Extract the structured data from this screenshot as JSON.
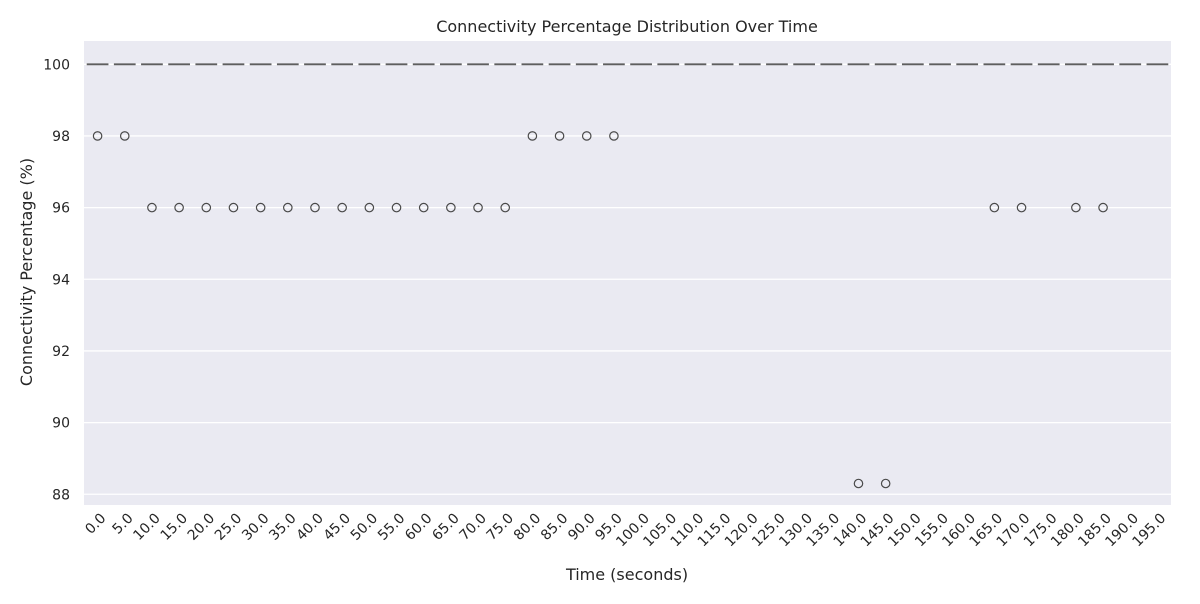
{
  "colors": {
    "plot_bg": "#EAEAF2",
    "grid": "#FFFFFF",
    "box_line": "#5E5E5E",
    "outlier_edge": "#4A4A4A",
    "text": "#262626"
  },
  "chart_data": {
    "type": "box",
    "title": "Connectivity Percentage Distribution Over Time",
    "xlabel": "Time (seconds)",
    "ylabel": "Connectivity Percentage (%)",
    "ylim": [
      87.7,
      100.65
    ],
    "yticks": [
      88,
      90,
      92,
      94,
      96,
      98,
      100
    ],
    "grid": true,
    "categories": [
      "0.0",
      "5.0",
      "10.0",
      "15.0",
      "20.0",
      "25.0",
      "30.0",
      "35.0",
      "40.0",
      "45.0",
      "50.0",
      "55.0",
      "60.0",
      "65.0",
      "70.0",
      "75.0",
      "80.0",
      "85.0",
      "90.0",
      "95.0",
      "100.0",
      "105.0",
      "110.0",
      "115.0",
      "120.0",
      "125.0",
      "130.0",
      "135.0",
      "140.0",
      "145.0",
      "150.0",
      "155.0",
      "160.0",
      "165.0",
      "170.0",
      "175.0",
      "180.0",
      "185.0",
      "190.0",
      "195.0"
    ],
    "median": [
      100,
      100,
      100,
      100,
      100,
      100,
      100,
      100,
      100,
      100,
      100,
      100,
      100,
      100,
      100,
      100,
      100,
      100,
      100,
      100,
      100,
      100,
      100,
      100,
      100,
      100,
      100,
      100,
      100,
      100,
      100,
      100,
      100,
      100,
      100,
      100,
      100,
      100,
      100,
      100
    ],
    "outliers": [
      [
        98
      ],
      [
        98
      ],
      [
        96
      ],
      [
        96
      ],
      [
        96
      ],
      [
        96
      ],
      [
        96
      ],
      [
        96
      ],
      [
        96
      ],
      [
        96
      ],
      [
        96
      ],
      [
        96
      ],
      [
        96
      ],
      [
        96
      ],
      [
        96
      ],
      [
        96
      ],
      [
        98
      ],
      [
        98
      ],
      [
        98
      ],
      [
        98
      ],
      [],
      [],
      [],
      [],
      [],
      [],
      [],
      [],
      [
        88.3
      ],
      [
        88.3
      ],
      [],
      [],
      [],
      [
        96
      ],
      [
        96
      ],
      [],
      [
        96
      ],
      [
        96
      ],
      [],
      []
    ]
  }
}
